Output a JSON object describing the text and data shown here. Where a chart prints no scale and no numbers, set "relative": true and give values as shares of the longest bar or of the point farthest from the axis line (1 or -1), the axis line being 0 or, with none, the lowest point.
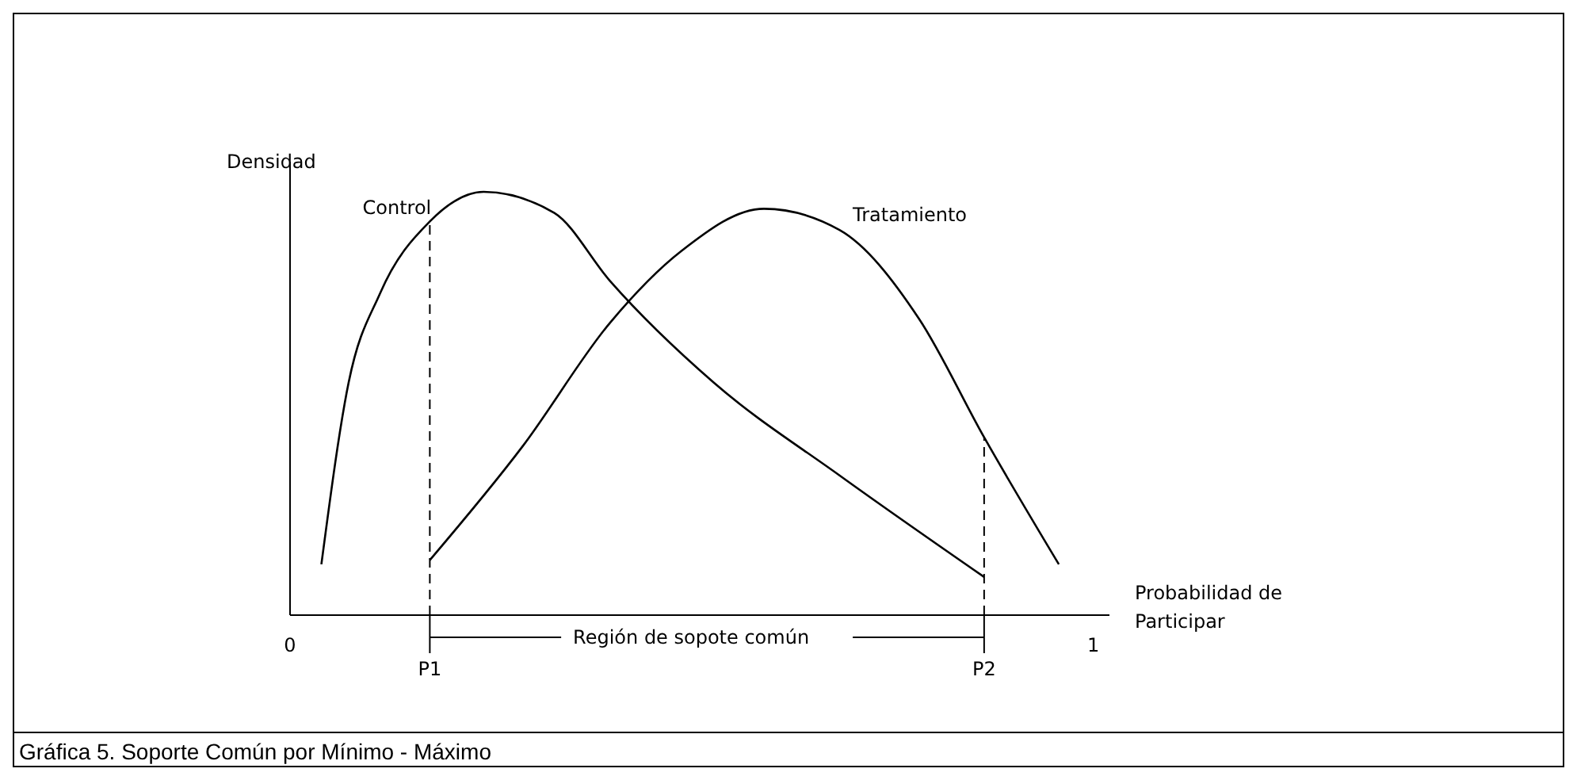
{
  "chart_data": {
    "type": "line",
    "relative": true,
    "ylabel": "Densidad",
    "xlabel": "Probabilidad de Participar",
    "xlim": [
      0,
      1.02
    ],
    "xticks": [
      0,
      1
    ],
    "grid": false,
    "marker": "none",
    "line_style": "solid",
    "series": [
      {
        "name": "Control",
        "color": "#000000",
        "x": [
          0.039,
          0.073,
          0.112,
          0.174,
          0.241,
          0.329,
          0.398,
          0.527,
          0.684,
          0.864
        ],
        "values": [
          0.12,
          0.55,
          0.76,
          0.93,
          1,
          0.95,
          0.79,
          0.55,
          0.33,
          0.09
        ]
      },
      {
        "name": "Tratamiento",
        "color": "#000000",
        "x": [
          0.174,
          0.29,
          0.398,
          0.487,
          0.59,
          0.684,
          0.783,
          0.864,
          0.957
        ],
        "values": [
          0.13,
          0.4,
          0.69,
          0.86,
          0.96,
          0.91,
          0.7,
          0.42,
          0.12
        ]
      }
    ],
    "ref_lines": [
      {
        "axis": "x",
        "value": 0.174,
        "label": "P1",
        "line_style": "dashed"
      },
      {
        "axis": "x",
        "value": 0.864,
        "label": "P2",
        "line_style": "dashed"
      }
    ],
    "annotations": [
      "Región de sopote común",
      "Gráfica 5. Soporte Común por Mínimo - Máximo"
    ]
  }
}
